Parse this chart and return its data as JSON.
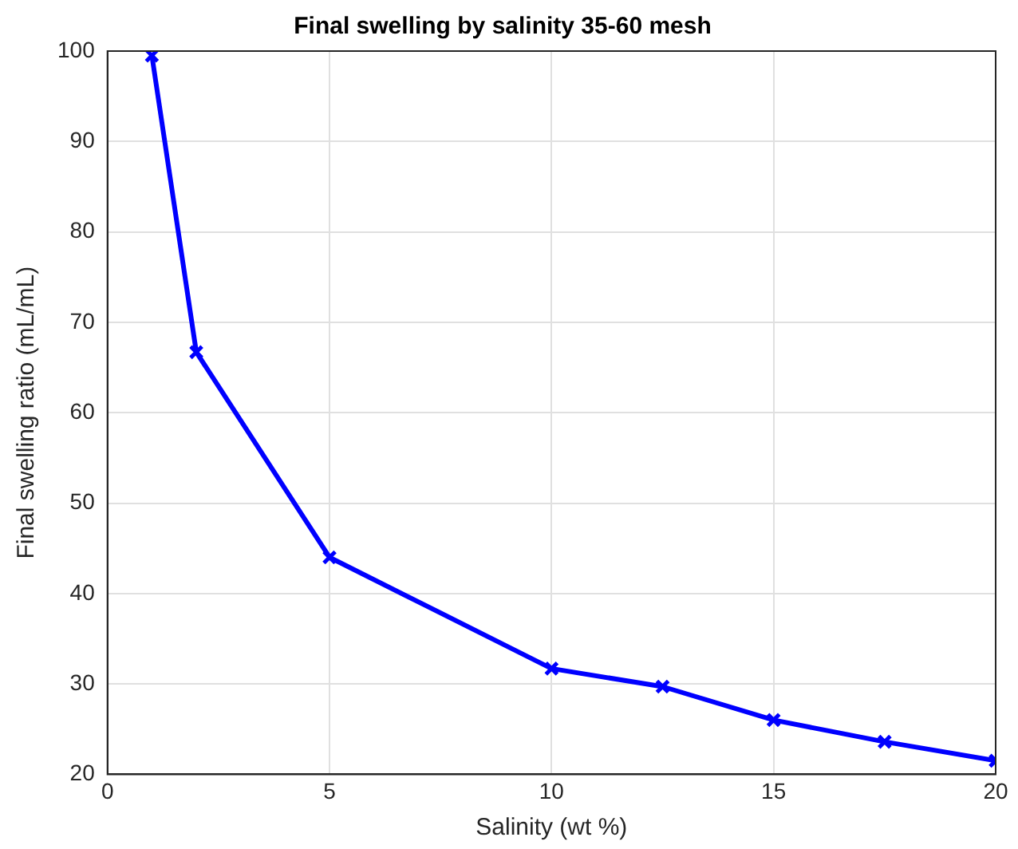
{
  "chart_data": {
    "type": "line",
    "title": "Final swelling by salinity 35-60 mesh",
    "xlabel": "Salinity (wt %)",
    "ylabel": "Final swelling ratio (mL/mL)",
    "x": [
      1,
      2,
      5,
      10,
      12.5,
      15,
      17.5,
      20
    ],
    "series": [
      {
        "color": "#0000ff",
        "values": [
          99.5,
          66.7,
          44,
          31.7,
          29.7,
          26,
          23.6,
          21.5
        ]
      }
    ],
    "xlim": [
      0,
      20
    ],
    "xticks": [
      0,
      5,
      10,
      15,
      20
    ],
    "ylim": [
      20,
      100
    ],
    "yticks": [
      20,
      30,
      40,
      50,
      60,
      70,
      80,
      90,
      100
    ],
    "grid": true,
    "legend": false,
    "marker": "cross",
    "line_style": "solid"
  }
}
